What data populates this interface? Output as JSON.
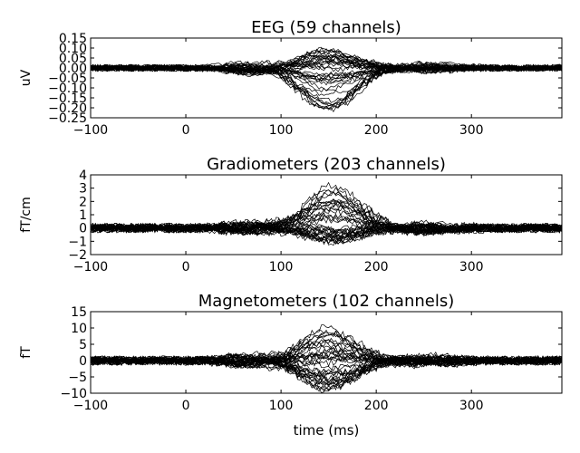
{
  "figure": {
    "xlabel": "time (ms)"
  },
  "chart_data": [
    {
      "type": "line",
      "title": "EEG (59 channels)",
      "ylabel": "uV",
      "xlabel": "",
      "xlim": [
        -100,
        395
      ],
      "ylim": [
        -0.25,
        0.15
      ],
      "x_ticks": [
        -100,
        0,
        100,
        200,
        300
      ],
      "x_tick_labels": [
        "−100",
        "0",
        "100",
        "200",
        "300"
      ],
      "y_ticks": [
        0.15,
        0.1,
        0.05,
        0.0,
        -0.05,
        -0.1,
        -0.15,
        -0.2,
        -0.25
      ],
      "y_tick_labels": [
        "0.15",
        "0.10",
        "0.05",
        "0.00",
        "−0.05",
        "−0.10",
        "−0.15",
        "−0.20",
        "−0.25"
      ],
      "n_channels": 59,
      "line_color": "#000000",
      "approx_range": {
        "baseline_noise": 0.012,
        "peak_time_ms": 150,
        "peak_max": 0.09,
        "peak_min": -0.22
      },
      "grid": false
    },
    {
      "type": "line",
      "title": "Gradiometers (203 channels)",
      "ylabel": "fT/cm",
      "xlabel": "",
      "xlim": [
        -100,
        395
      ],
      "ylim": [
        -2,
        4
      ],
      "x_ticks": [
        -100,
        0,
        100,
        200,
        300
      ],
      "x_tick_labels": [
        "−100",
        "0",
        "100",
        "200",
        "300"
      ],
      "y_ticks": [
        4,
        3,
        2,
        1,
        0,
        -1,
        -2
      ],
      "y_tick_labels": [
        "4",
        "3",
        "2",
        "1",
        "0",
        "−1",
        "−2"
      ],
      "n_channels": 203,
      "line_color": "#000000",
      "approx_range": {
        "baseline_noise": 0.25,
        "peak_time_ms": 155,
        "peak_max": 3.3,
        "peak_min": -1.2
      },
      "grid": false
    },
    {
      "type": "line",
      "title": "Magnetometers (102 channels)",
      "ylabel": "fT",
      "xlabel": "time (ms)",
      "xlim": [
        -100,
        395
      ],
      "ylim": [
        -10,
        15
      ],
      "x_ticks": [
        -100,
        0,
        100,
        200,
        300
      ],
      "x_tick_labels": [
        "−100",
        "0",
        "100",
        "200",
        "300"
      ],
      "y_ticks": [
        15,
        10,
        5,
        0,
        -5,
        -10
      ],
      "y_tick_labels": [
        "15",
        "10",
        "5",
        "0",
        "−5",
        "−10"
      ],
      "n_channels": 102,
      "line_color": "#000000",
      "approx_range": {
        "baseline_noise": 1.0,
        "peak_time_ms": 150,
        "peak_max": 10,
        "peak_min": -9
      },
      "grid": false
    }
  ]
}
